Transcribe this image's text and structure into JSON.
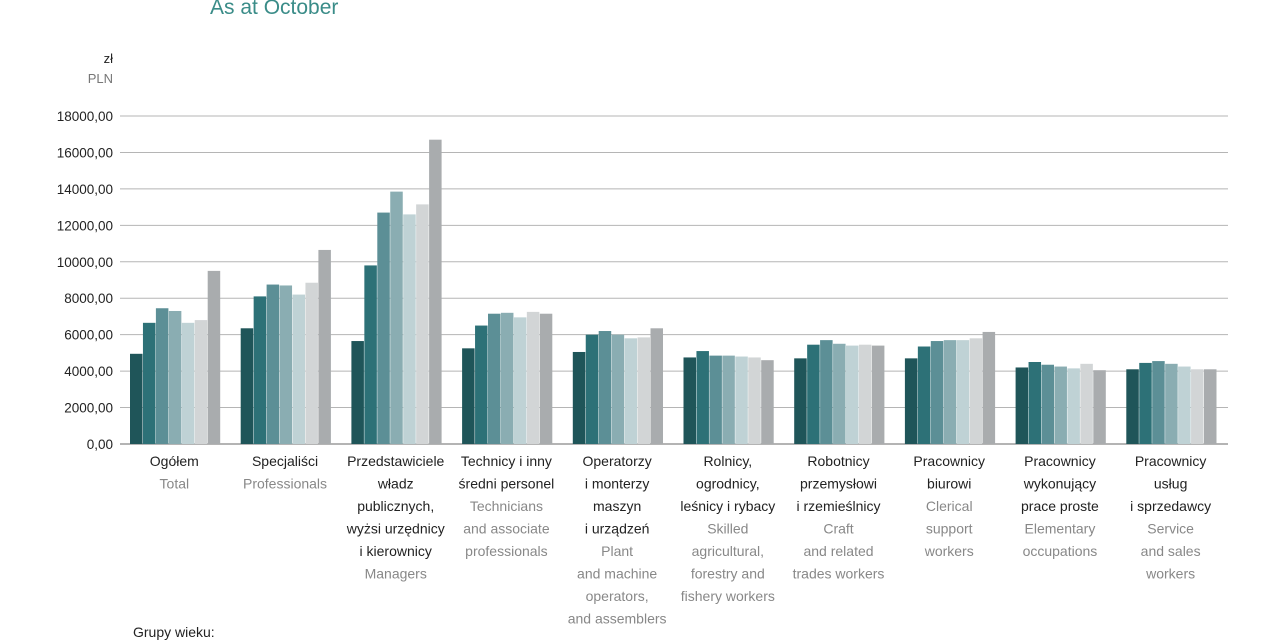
{
  "header": {
    "title": "As at October"
  },
  "chart_data": {
    "type": "bar",
    "title": "As at October",
    "ylabel": [
      "zł",
      "PLN"
    ],
    "ylim": [
      0,
      18000
    ],
    "yticks": [
      "0,00",
      "2000,00",
      "4000,00",
      "6000,00",
      "8000,00",
      "10000,00",
      "12000,00",
      "14000,00",
      "16000,00",
      "18000,00"
    ],
    "grid": true,
    "categories": [
      {
        "pl": [
          "Ogółem"
        ],
        "en": [
          "Total"
        ]
      },
      {
        "pl": [
          "Specjaliści"
        ],
        "en": [
          "Professionals"
        ]
      },
      {
        "pl": [
          "Przedstawiciele",
          "władz",
          "publicznych,",
          "wyżsi urzędnicy",
          "i kierownicy"
        ],
        "en": [
          "Managers"
        ]
      },
      {
        "pl": [
          "Technicy i inny",
          "średni personel"
        ],
        "en": [
          "Technicians",
          "and associate",
          "professionals"
        ]
      },
      {
        "pl": [
          "Operatorzy",
          "i monterzy",
          "maszyn",
          "i urządzeń"
        ],
        "en": [
          "Plant",
          "and machine",
          "operators,",
          "and assemblers"
        ]
      },
      {
        "pl": [
          "Rolnicy,",
          "ogrodnicy,",
          "leśnicy i rybacy"
        ],
        "en": [
          "Skilled",
          "agricultural,",
          "forestry and",
          "fishery workers"
        ]
      },
      {
        "pl": [
          "Robotnicy",
          "przemysłowi",
          "i rzemieślnicy"
        ],
        "en": [
          "Craft",
          "and related",
          "trades workers"
        ]
      },
      {
        "pl": [
          "Pracownicy",
          "biurowi"
        ],
        "en": [
          "Clerical",
          "support",
          "workers"
        ]
      },
      {
        "pl": [
          "Pracownicy",
          "wykonujący",
          "prace proste"
        ],
        "en": [
          "Elementary",
          "occupations"
        ]
      },
      {
        "pl": [
          "Pracownicy",
          "usług",
          "i sprzedawcy"
        ],
        "en": [
          "Service",
          "and sales",
          "workers"
        ]
      }
    ],
    "series": [
      {
        "color": "#1f5559",
        "values": [
          4950,
          6350,
          5650,
          5250,
          5050,
          4750,
          4700,
          4700,
          4200,
          4100
        ]
      },
      {
        "color": "#2d7177",
        "values": [
          6650,
          8100,
          9800,
          6500,
          6000,
          5100,
          5450,
          5350,
          4500,
          4450
        ]
      },
      {
        "color": "#5c8f96",
        "values": [
          7450,
          8750,
          12700,
          7150,
          6200,
          4850,
          5700,
          5650,
          4350,
          4550
        ]
      },
      {
        "color": "#8aadb2",
        "values": [
          7300,
          8700,
          13850,
          7200,
          6000,
          4850,
          5500,
          5700,
          4250,
          4400
        ]
      },
      {
        "color": "#bfd2d5",
        "values": [
          6650,
          8200,
          12600,
          6950,
          5800,
          4800,
          5400,
          5700,
          4150,
          4250
        ]
      },
      {
        "color": "#d2d5d6",
        "values": [
          6800,
          8850,
          13150,
          7250,
          5850,
          4750,
          5450,
          5800,
          4400,
          4100
        ]
      },
      {
        "color": "#a9acae",
        "values": [
          9500,
          10650,
          16700,
          7150,
          6350,
          4600,
          5400,
          6150,
          4050,
          4100
        ]
      }
    ]
  },
  "legend": {
    "title": "Grupy wieku:"
  }
}
